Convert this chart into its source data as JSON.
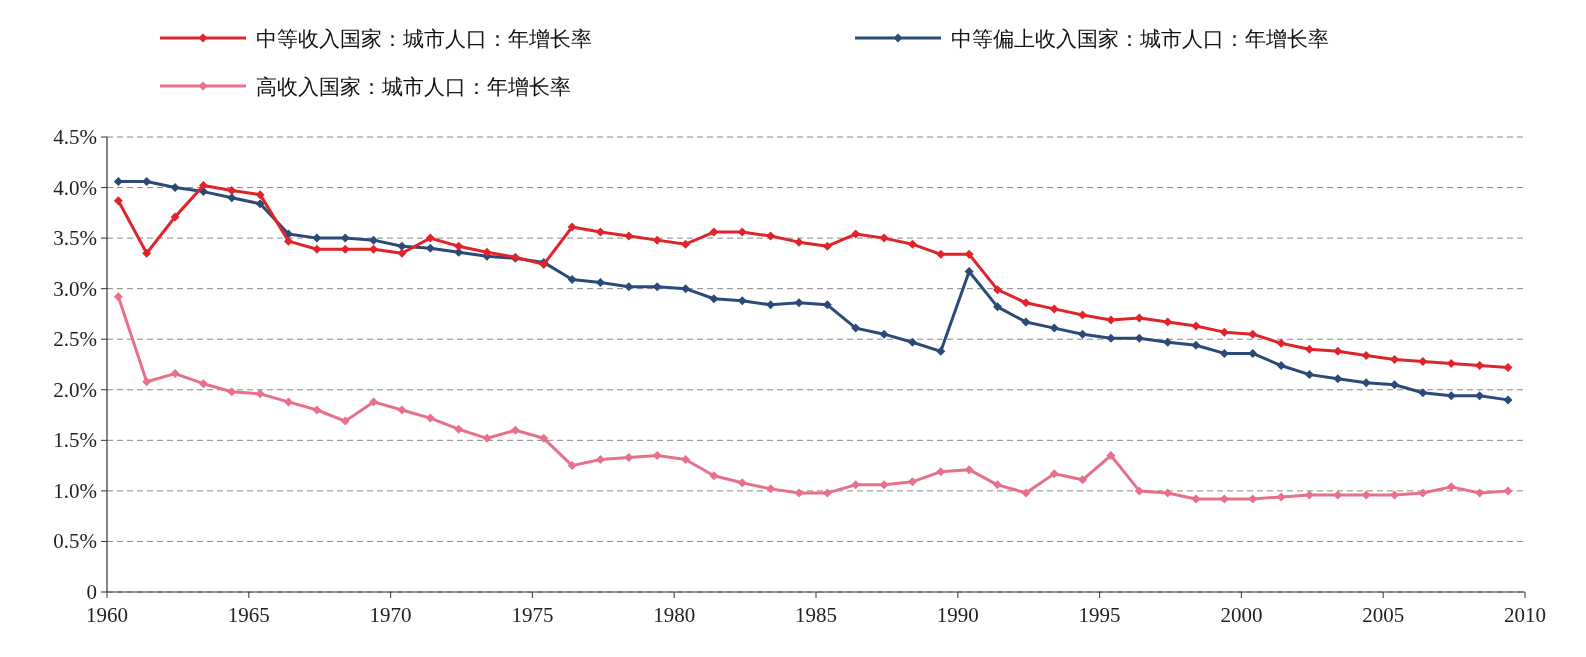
{
  "chart_data": {
    "type": "line",
    "marker": "diamond",
    "line_style": "solid",
    "grid": "y",
    "legend": "top",
    "x": [
      1960.4,
      1961.4,
      1962.4,
      1963.4,
      1964.4,
      1965.4,
      1966.4,
      1967.4,
      1968.4,
      1969.4,
      1970.4,
      1971.4,
      1972.4,
      1973.4,
      1974.4,
      1975.4,
      1976.4,
      1977.4,
      1978.4,
      1979.4,
      1980.4,
      1981.4,
      1982.4,
      1983.4,
      1984.4,
      1985.4,
      1986.4,
      1987.4,
      1988.4,
      1989.4,
      1990.4,
      1991.4,
      1992.4,
      1993.4,
      1994.4,
      1995.4,
      1996.4,
      1997.4,
      1998.4,
      1999.4,
      2000.4,
      2001.4,
      2002.4,
      2003.4,
      2004.4,
      2005.4,
      2006.4,
      2007.4,
      2008.4,
      2009.4
    ],
    "xlim": [
      1960,
      2010
    ],
    "xticks": [
      1960,
      1965,
      1970,
      1975,
      1980,
      1985,
      1990,
      1995,
      2000,
      2005,
      2010
    ],
    "ylim": [
      0,
      4.5
    ],
    "yticks": [
      0,
      {
        "value": 0.5,
        "label": "0.5%"
      },
      {
        "value": 1,
        "label": "1.0%"
      },
      {
        "value": 1.5,
        "label": "1.5%"
      },
      {
        "value": 2,
        "label": "2.0%"
      },
      {
        "value": 2.5,
        "label": "2.5%"
      },
      {
        "value": 3,
        "label": "3.0%"
      },
      {
        "value": 3.5,
        "label": "3.5%"
      },
      {
        "value": 4,
        "label": "4.0%"
      },
      {
        "value": 4.5,
        "label": "4.5%"
      }
    ],
    "series": [
      {
        "name": "中等收入国家：城市人口：年增长率",
        "color": "#e0242b",
        "values": [
          3.87,
          3.35,
          3.71,
          4.02,
          3.97,
          3.93,
          3.47,
          3.39,
          3.39,
          3.39,
          3.35,
          3.5,
          3.42,
          3.36,
          3.31,
          3.24,
          3.61,
          3.56,
          3.52,
          3.48,
          3.44,
          3.56,
          3.56,
          3.52,
          3.46,
          3.42,
          3.54,
          3.5,
          3.44,
          3.34,
          3.34,
          2.99,
          2.86,
          2.8,
          2.74,
          2.69,
          2.71,
          2.67,
          2.63,
          2.57,
          2.55,
          2.46,
          2.4,
          2.38,
          2.34,
          2.3,
          2.28,
          2.26,
          2.24,
          2.22
        ]
      },
      {
        "name": "中等偏上收入国家：城市人口：年增长率",
        "color": "#2b4a78",
        "values": [
          4.06,
          4.06,
          4.0,
          3.96,
          3.9,
          3.84,
          3.54,
          3.5,
          3.5,
          3.48,
          3.42,
          3.4,
          3.36,
          3.32,
          3.3,
          3.26,
          3.09,
          3.06,
          3.02,
          3.02,
          3.0,
          2.9,
          2.88,
          2.84,
          2.86,
          2.84,
          2.61,
          2.55,
          2.47,
          2.38,
          3.17,
          2.82,
          2.67,
          2.61,
          2.55,
          2.51,
          2.51,
          2.47,
          2.44,
          2.36,
          2.36,
          2.24,
          2.15,
          2.11,
          2.07,
          2.05,
          1.97,
          1.94,
          1.94,
          1.9
        ]
      },
      {
        "name": "高收入国家：城市人口：年增长率",
        "color": "#e8708a",
        "values": [
          2.92,
          2.08,
          2.16,
          2.06,
          1.98,
          1.96,
          1.88,
          1.8,
          1.69,
          1.88,
          1.8,
          1.72,
          1.61,
          1.52,
          1.6,
          1.52,
          1.25,
          1.31,
          1.33,
          1.35,
          1.31,
          1.15,
          1.08,
          1.02,
          0.98,
          0.98,
          1.06,
          1.06,
          1.09,
          1.19,
          1.21,
          1.06,
          0.98,
          1.17,
          1.11,
          1.35,
          1.0,
          0.98,
          0.92,
          0.92,
          0.92,
          0.94,
          0.96,
          0.96,
          0.96,
          0.96,
          0.98,
          1.04,
          0.98,
          1.0
        ]
      }
    ]
  }
}
